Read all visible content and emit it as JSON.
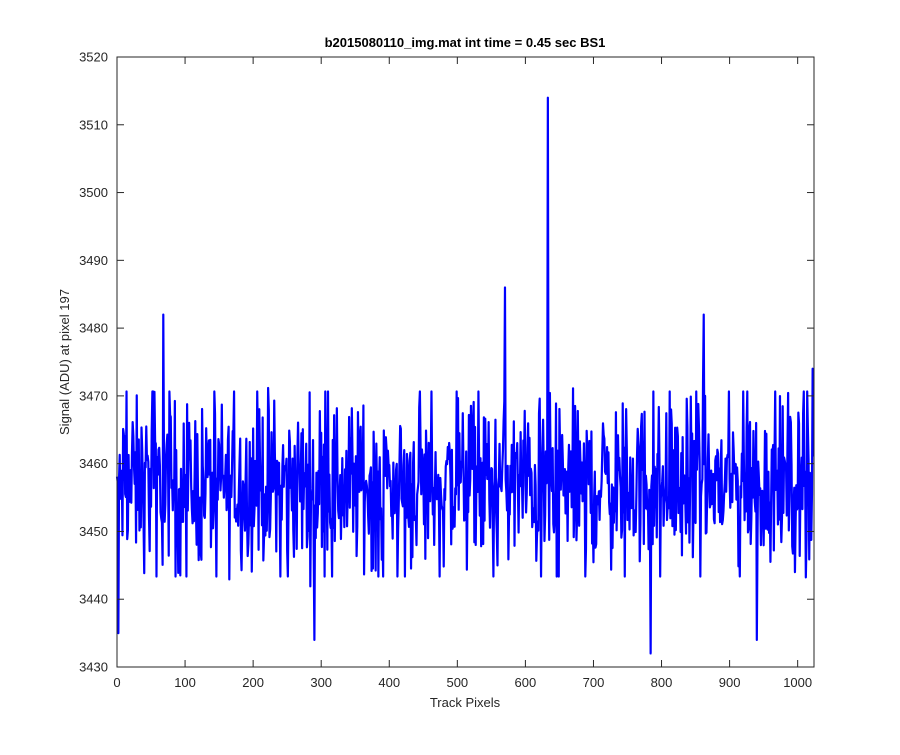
{
  "chart_data": {
    "type": "line",
    "title": "b2015080110_img.mat int time = 0.45 sec   BS1",
    "xlabel": "Track Pixels",
    "ylabel": "Signal (ADU) at pixel 197",
    "xlim": [
      0,
      1024
    ],
    "ylim": [
      3430,
      3520
    ],
    "xticks": [
      "0",
      "100",
      "200",
      "300",
      "400",
      "500",
      "600",
      "700",
      "800",
      "900",
      "1000"
    ],
    "yticks": [
      "3430",
      "3440",
      "3450",
      "3460",
      "3470",
      "3480",
      "3490",
      "3500",
      "3510",
      "3520"
    ],
    "series": [
      {
        "color": "#0000ff",
        "points_approx": 1024,
        "mean": 3457,
        "noise_band": [
          3444,
          3470
        ],
        "notable_points": [
          {
            "x": 2,
            "y": 3435
          },
          {
            "x": 68,
            "y": 3482
          },
          {
            "x": 290,
            "y": 3434
          },
          {
            "x": 570,
            "y": 3486
          },
          {
            "x": 633,
            "y": 3514
          },
          {
            "x": 784,
            "y": 3432
          },
          {
            "x": 862,
            "y": 3482
          },
          {
            "x": 940,
            "y": 3434
          },
          {
            "x": 1022,
            "y": 3474
          }
        ]
      }
    ]
  }
}
